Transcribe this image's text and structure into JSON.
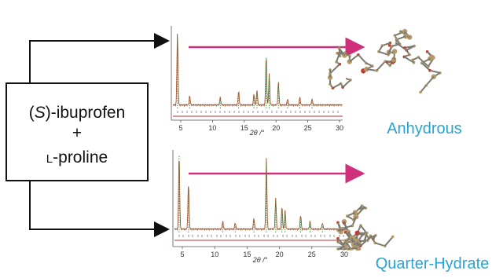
{
  "reactants": {
    "first": {
      "prefix": "(",
      "italic": "S",
      "suffix": ")-ibuprofen"
    },
    "plus": "+",
    "second": {
      "smallcap": "L",
      "suffix": "-proline"
    }
  },
  "patterns": [
    {
      "axis_label": "2θ /°",
      "ticks": [
        5,
        10,
        15,
        20,
        25,
        30
      ],
      "form": "Anhydrous"
    },
    {
      "axis_label": "2θ /°",
      "ticks": [
        5,
        10,
        15,
        20,
        25,
        30
      ],
      "form": "Quarter-Hydrate"
    }
  ]
}
